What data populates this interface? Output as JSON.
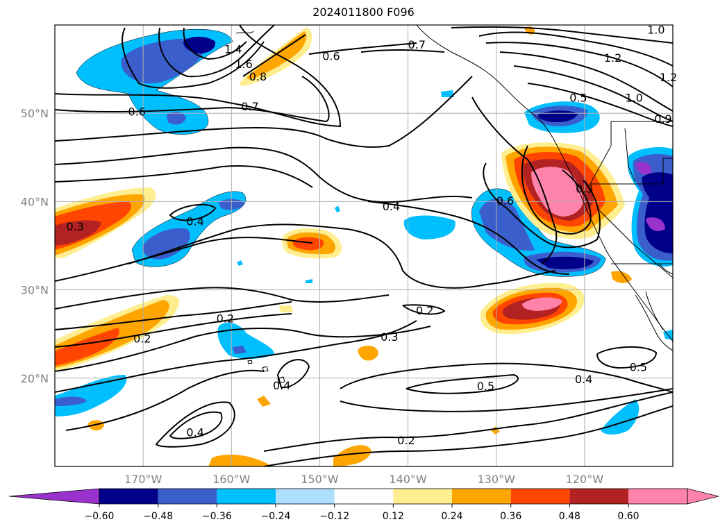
{
  "title": "2024011800 F096",
  "map": {
    "projection": "PlateCarree",
    "lon_range": [
      -180,
      -110
    ],
    "lat_range": [
      10,
      60
    ],
    "gridlines": true,
    "lat_ticks": [
      {
        "value": 50,
        "label": "50°N"
      },
      {
        "value": 40,
        "label": "40°N"
      },
      {
        "value": 30,
        "label": "30°N"
      },
      {
        "value": 20,
        "label": "20°N"
      }
    ],
    "lon_ticks": [
      {
        "value": -170,
        "label": "170°W"
      },
      {
        "value": -160,
        "label": "160°W"
      },
      {
        "value": -150,
        "label": "150°W"
      },
      {
        "value": -140,
        "label": "140°W"
      },
      {
        "value": -130,
        "label": "130°W"
      },
      {
        "value": -120,
        "label": "120°W"
      }
    ],
    "contour_labels": [
      {
        "text": "0.6",
        "lon": -148.7,
        "lat": 56.5
      },
      {
        "text": "1.0",
        "lon": -111.9,
        "lat": 59.5
      },
      {
        "text": "1.2",
        "lon": -116.8,
        "lat": 56.3
      },
      {
        "text": "1.0",
        "lon": -114.4,
        "lat": 51.8
      },
      {
        "text": "0.5",
        "lon": -120.7,
        "lat": 51.8
      },
      {
        "text": "0.9",
        "lon": -111.1,
        "lat": 49.4
      },
      {
        "text": "1.2",
        "lon": -110.5,
        "lat": 54.1
      },
      {
        "text": "0.7",
        "lon": -139.0,
        "lat": 57.8
      },
      {
        "text": "1.4",
        "lon": -159.8,
        "lat": 57.3
      },
      {
        "text": "1.6",
        "lon": -158.6,
        "lat": 55.6
      },
      {
        "text": "0.8",
        "lon": -157.0,
        "lat": 54.2
      },
      {
        "text": "0.6",
        "lon": -170.7,
        "lat": 50.2
      },
      {
        "text": "0.7",
        "lon": -157.9,
        "lat": 50.8
      },
      {
        "text": "0.4",
        "lon": -141.9,
        "lat": 39.5
      },
      {
        "text": "0.4",
        "lon": -164.1,
        "lat": 37.8
      },
      {
        "text": "0.3",
        "lon": -177.7,
        "lat": 37.2
      },
      {
        "text": "0.6",
        "lon": -129.0,
        "lat": 40.1
      },
      {
        "text": "0.3",
        "lon": -120.0,
        "lat": 41.5
      },
      {
        "text": "0.2",
        "lon": -160.7,
        "lat": 26.8
      },
      {
        "text": "0.2",
        "lon": -170.1,
        "lat": 24.5
      },
      {
        "text": "0.2",
        "lon": -138.1,
        "lat": 27.7
      },
      {
        "text": "0.3",
        "lon": -142.1,
        "lat": 24.7
      },
      {
        "text": "0.4",
        "lon": -154.3,
        "lat": 19.2
      },
      {
        "text": "0.5",
        "lon": -113.9,
        "lat": 21.3
      },
      {
        "text": "0.4",
        "lon": -120.1,
        "lat": 19.9
      },
      {
        "text": "0.5",
        "lon": -131.2,
        "lat": 19.1
      },
      {
        "text": "0.4",
        "lon": -164.1,
        "lat": 13.9
      },
      {
        "text": "0.2",
        "lon": -140.2,
        "lat": 13.0
      }
    ]
  },
  "colorbar": {
    "extend": "both",
    "bins": [
      {
        "color": "#9932CC"
      },
      {
        "color": "#00008B"
      },
      {
        "color": "#3A5FCD"
      },
      {
        "color": "#00BFFF"
      },
      {
        "color": "#ADE0FF"
      },
      {
        "color": "#FFFFFF"
      },
      {
        "color": "#FFEE90"
      },
      {
        "color": "#FFA500"
      },
      {
        "color": "#FF4500"
      },
      {
        "color": "#B22222"
      },
      {
        "color": "#FF82AB"
      },
      {
        "color": "#FF82AB"
      }
    ],
    "ticks": [
      "−0.60",
      "−0.48",
      "−0.36",
      "−0.24",
      "−0.12",
      "0.12",
      "0.24",
      "0.36",
      "0.48",
      "0.60"
    ]
  }
}
